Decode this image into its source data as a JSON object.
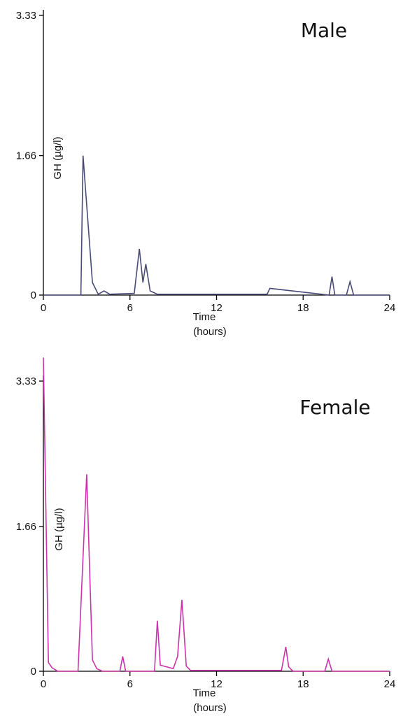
{
  "chart_data": [
    {
      "type": "line",
      "title": "Male",
      "xlabel": [
        "Time",
        "(hours)"
      ],
      "ylabel": "GH (µg/l)",
      "xlim": [
        0,
        24
      ],
      "ylim": [
        0,
        3.33
      ],
      "xticks": [
        0,
        6,
        12,
        18,
        24
      ],
      "yticks": [
        0,
        1.66,
        3.33
      ],
      "ytick_labels": [
        "0",
        "1.66",
        "3.33"
      ],
      "grid": false,
      "color": "#4a4a78",
      "series": [
        {
          "x": [
            0,
            2.6,
            2.75,
            3.4,
            3.8,
            4.2,
            4.6,
            6.3,
            6.65,
            6.9,
            7.1,
            7.4,
            7.9,
            15.5,
            15.7,
            19.8,
            20.0,
            20.2,
            21.0,
            21.25,
            21.5,
            24
          ],
          "y": [
            0,
            0,
            1.66,
            0.15,
            0.01,
            0.05,
            0.01,
            0.02,
            0.55,
            0.15,
            0.37,
            0.05,
            0.01,
            0.01,
            0.08,
            0,
            0.22,
            0,
            0,
            0.16,
            0,
            0
          ]
        }
      ]
    },
    {
      "type": "line",
      "title": "Female",
      "xlabel": [
        "Time",
        "(hours)"
      ],
      "ylabel": "GH (µg/l)",
      "xlim": [
        0,
        24
      ],
      "ylim": [
        0,
        3.33
      ],
      "xticks": [
        0,
        6,
        12,
        18,
        24
      ],
      "yticks": [
        0,
        1.66,
        3.33
      ],
      "ytick_labels": [
        "0",
        "1.66",
        "3.33"
      ],
      "grid": false,
      "color": "#cc33aa",
      "series": [
        {
          "x": [
            0,
            0.35,
            0.6,
            1.0,
            2.4,
            3.0,
            3.4,
            3.7,
            4.1,
            5.3,
            5.5,
            5.7,
            7.7,
            7.9,
            8.1,
            9.0,
            9.3,
            9.6,
            9.9,
            10.2,
            16.5,
            16.8,
            17.0,
            17.3,
            19.5,
            19.75,
            20.0,
            24
          ],
          "y": [
            3.6,
            0.1,
            0.04,
            0,
            0,
            2.26,
            0.13,
            0.03,
            0,
            0,
            0.17,
            0,
            0,
            0.58,
            0.07,
            0.03,
            0.17,
            0.82,
            0.06,
            0.01,
            0.01,
            0.28,
            0.05,
            0,
            0,
            0.14,
            0,
            0
          ]
        }
      ]
    }
  ]
}
